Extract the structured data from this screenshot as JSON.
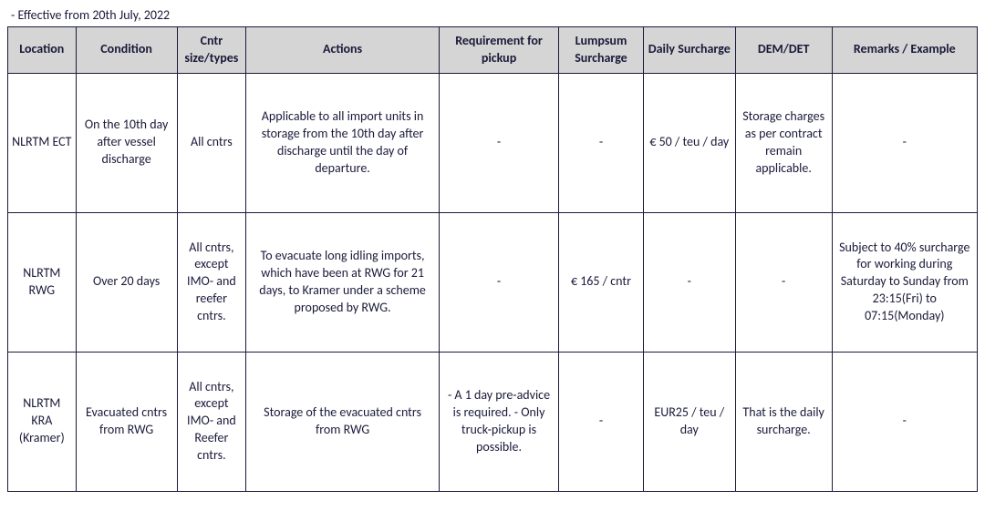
{
  "effective_text": "- Effective from 20th July, 2022",
  "headers": {
    "location": "Location",
    "condition": "Condition",
    "cntr": "Cntr size/types",
    "actions": "Actions",
    "req": "Requirement for pickup",
    "lumpsum": "Lumpsum Surcharge",
    "daily": "Daily Surcharge",
    "demdet": "DEM/DET",
    "remarks": "Remarks / Example"
  },
  "rows": [
    {
      "location": "NLRTM ECT",
      "condition": "On the 10th day after vessel discharge",
      "cntr": "All cntrs",
      "actions": "Applicable to all import units in storage from the 10th day after discharge until the day of departure.",
      "req": "-",
      "lumpsum": "-",
      "daily": "€ 50 / teu / day",
      "demdet": "Storage charges as per contract remain applicable.",
      "remarks": "-"
    },
    {
      "location": "NLRTM RWG",
      "condition": "Over 20 days",
      "cntr": "All cntrs, except IMO- and reefer cntrs.",
      "actions": "To evacuate long idling imports, which have been at RWG for 21 days, to Kramer under a scheme proposed by RWG.",
      "req": "-",
      "lumpsum": "€ 165 / cntr",
      "daily": "-",
      "demdet": "-",
      "remarks": "Subject to 40% surcharge for working during Saturday to Sunday from 23:15(Fri) to 07:15(Monday)"
    },
    {
      "location": "NLRTM KRA (Kramer)",
      "condition": "Evacuated cntrs from RWG",
      "cntr": "All cntrs, except IMO- and Reefer cntrs.",
      "actions": "Storage of the evacuated cntrs from RWG",
      "req": "- A 1 day pre-advice is required.\n- Only truck-pickup is possible.",
      "lumpsum": "-",
      "daily": "EUR25 / teu / day",
      "demdet": "That is the daily surcharge.",
      "remarks": "-"
    }
  ]
}
